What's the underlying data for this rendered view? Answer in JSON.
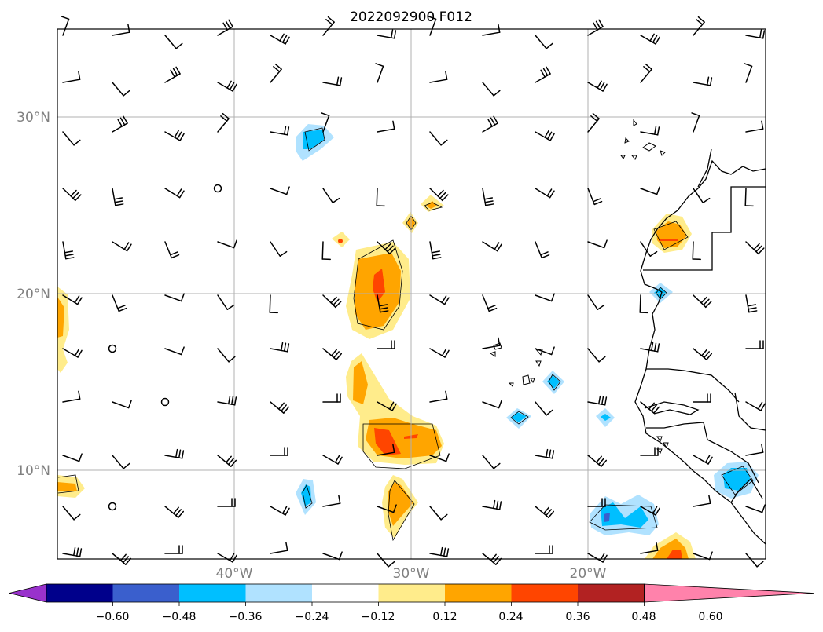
{
  "title": "2022092900 F012",
  "lat_labels": [
    "30°N",
    "20°N",
    "10°N"
  ],
  "lon_labels": [
    "40°W",
    "30°W",
    "20°W"
  ],
  "colorbar": {
    "tick_labels": [
      "−0.60",
      "−0.48",
      "−0.36",
      "−0.24",
      "−0.12",
      "0.12",
      "0.24",
      "0.36",
      "0.48",
      "0.60"
    ],
    "colors": [
      "#9932cc",
      "#00008b",
      "#3a5fcd",
      "#00bfff",
      "#b0e2ff",
      "#ffffff",
      "#ffec8b",
      "#ffa500",
      "#ff4500",
      "#b22222",
      "#ff82ab"
    ]
  },
  "map": {
    "grid_lat": [
      30,
      20,
      10
    ],
    "grid_lon": [
      -40,
      -30,
      -20
    ],
    "contour_colors": {
      "pos1": "#ffec8b",
      "pos2": "#ffa500",
      "pos3": "#ff4500",
      "neg1": "#b0e2ff",
      "neg2": "#00bfff",
      "neg3": "#3a5fcd"
    }
  }
}
